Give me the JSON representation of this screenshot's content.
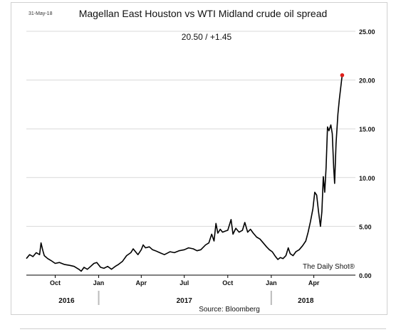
{
  "chart_data": {
    "type": "line",
    "date": "31-May-18",
    "title": "Magellan East Houston vs WTI Midland crude oil spread",
    "subtitle": "20.50  /  +1.45",
    "source": "Source: Bloomberg",
    "watermark": "The Daily Shot®",
    "ylim": [
      0,
      25
    ],
    "yticks": [
      "0.00",
      "5.00",
      "10.00",
      "15.00",
      "20.00",
      "25.00"
    ],
    "grid": "horizontal",
    "line_color": "#000000",
    "last_point_color": "#e0201b",
    "month_ticks": [
      {
        "label": "Oct",
        "date": "2016-10-01"
      },
      {
        "label": "Jan",
        "date": "2017-01-01"
      },
      {
        "label": "Apr",
        "date": "2017-04-01"
      },
      {
        "label": "Jul",
        "date": "2017-07-01"
      },
      {
        "label": "Oct",
        "date": "2017-10-01"
      },
      {
        "label": "Jan",
        "date": "2018-01-01"
      },
      {
        "label": "Apr",
        "date": "2018-04-01"
      }
    ],
    "year_labels": [
      {
        "label": "2016",
        "date": "2016-10-25"
      },
      {
        "label": "2017",
        "date": "2017-07-01"
      },
      {
        "label": "2018",
        "date": "2018-03-15"
      }
    ],
    "year_dividers": [
      "2017-01-01",
      "2018-01-01"
    ],
    "x_range": [
      "2016-08-01",
      "2018-06-28"
    ],
    "series": [
      {
        "points": [
          [
            "2016-08-01",
            1.7
          ],
          [
            "2016-08-08",
            2.1
          ],
          [
            "2016-08-15",
            1.9
          ],
          [
            "2016-08-22",
            2.3
          ],
          [
            "2016-08-29",
            2.1
          ],
          [
            "2016-09-01",
            3.3
          ],
          [
            "2016-09-05",
            2.5
          ],
          [
            "2016-09-08",
            2.0
          ],
          [
            "2016-09-15",
            1.7
          ],
          [
            "2016-09-22",
            1.5
          ],
          [
            "2016-10-01",
            1.2
          ],
          [
            "2016-10-10",
            1.3
          ],
          [
            "2016-10-20",
            1.1
          ],
          [
            "2016-11-01",
            1.0
          ],
          [
            "2016-11-10",
            0.9
          ],
          [
            "2016-11-20",
            0.6
          ],
          [
            "2016-11-25",
            0.4
          ],
          [
            "2016-12-01",
            0.8
          ],
          [
            "2016-12-08",
            0.6
          ],
          [
            "2016-12-15",
            0.9
          ],
          [
            "2016-12-22",
            1.2
          ],
          [
            "2016-12-28",
            1.3
          ],
          [
            "2017-01-05",
            0.8
          ],
          [
            "2017-01-12",
            0.7
          ],
          [
            "2017-01-20",
            0.9
          ],
          [
            "2017-01-28",
            0.6
          ],
          [
            "2017-02-05",
            0.9
          ],
          [
            "2017-02-12",
            1.1
          ],
          [
            "2017-02-20",
            1.4
          ],
          [
            "2017-03-01",
            2.0
          ],
          [
            "2017-03-10",
            2.3
          ],
          [
            "2017-03-15",
            2.7
          ],
          [
            "2017-03-20",
            2.4
          ],
          [
            "2017-03-25",
            2.1
          ],
          [
            "2017-04-01",
            2.6
          ],
          [
            "2017-04-05",
            3.1
          ],
          [
            "2017-04-10",
            2.8
          ],
          [
            "2017-04-18",
            2.9
          ],
          [
            "2017-04-25",
            2.6
          ],
          [
            "2017-05-01",
            2.5
          ],
          [
            "2017-05-10",
            2.3
          ],
          [
            "2017-05-20",
            2.1
          ],
          [
            "2017-06-01",
            2.4
          ],
          [
            "2017-06-10",
            2.3
          ],
          [
            "2017-06-20",
            2.5
          ],
          [
            "2017-07-01",
            2.6
          ],
          [
            "2017-07-10",
            2.8
          ],
          [
            "2017-07-20",
            2.7
          ],
          [
            "2017-07-28",
            2.5
          ],
          [
            "2017-08-05",
            2.6
          ],
          [
            "2017-08-15",
            3.1
          ],
          [
            "2017-08-22",
            3.3
          ],
          [
            "2017-08-28",
            4.2
          ],
          [
            "2017-09-02",
            3.5
          ],
          [
            "2017-09-06",
            5.3
          ],
          [
            "2017-09-10",
            4.3
          ],
          [
            "2017-09-15",
            4.7
          ],
          [
            "2017-09-20",
            4.4
          ],
          [
            "2017-09-25",
            4.5
          ],
          [
            "2017-10-01",
            4.6
          ],
          [
            "2017-10-08",
            5.7
          ],
          [
            "2017-10-12",
            4.2
          ],
          [
            "2017-10-18",
            4.8
          ],
          [
            "2017-10-25",
            4.4
          ],
          [
            "2017-11-01",
            4.6
          ],
          [
            "2017-11-06",
            5.4
          ],
          [
            "2017-11-12",
            4.4
          ],
          [
            "2017-11-18",
            4.7
          ],
          [
            "2017-11-24",
            4.3
          ],
          [
            "2017-12-01",
            3.9
          ],
          [
            "2017-12-08",
            3.7
          ],
          [
            "2017-12-15",
            3.3
          ],
          [
            "2017-12-22",
            2.9
          ],
          [
            "2017-12-28",
            2.6
          ],
          [
            "2018-01-03",
            2.4
          ],
          [
            "2018-01-10",
            1.9
          ],
          [
            "2018-01-15",
            1.6
          ],
          [
            "2018-01-20",
            1.8
          ],
          [
            "2018-01-26",
            1.7
          ],
          [
            "2018-02-01",
            2.0
          ],
          [
            "2018-02-06",
            2.8
          ],
          [
            "2018-02-10",
            2.2
          ],
          [
            "2018-02-16",
            2.0
          ],
          [
            "2018-02-22",
            2.4
          ],
          [
            "2018-03-01",
            2.6
          ],
          [
            "2018-03-08",
            3.0
          ],
          [
            "2018-03-15",
            3.5
          ],
          [
            "2018-03-20",
            4.4
          ],
          [
            "2018-03-25",
            5.5
          ],
          [
            "2018-03-30",
            6.8
          ],
          [
            "2018-04-03",
            8.5
          ],
          [
            "2018-04-07",
            8.2
          ],
          [
            "2018-04-11",
            6.5
          ],
          [
            "2018-04-15",
            5.0
          ],
          [
            "2018-04-18",
            6.5
          ],
          [
            "2018-04-21",
            10.1
          ],
          [
            "2018-04-24",
            8.5
          ],
          [
            "2018-04-27",
            11.0
          ],
          [
            "2018-04-30",
            15.2
          ],
          [
            "2018-05-03",
            14.8
          ],
          [
            "2018-05-07",
            15.4
          ],
          [
            "2018-05-10",
            14.5
          ],
          [
            "2018-05-13",
            11.0
          ],
          [
            "2018-05-15",
            9.4
          ],
          [
            "2018-05-18",
            13.5
          ],
          [
            "2018-05-22",
            16.5
          ],
          [
            "2018-05-25",
            18.0
          ],
          [
            "2018-05-31",
            20.5
          ]
        ]
      }
    ]
  }
}
